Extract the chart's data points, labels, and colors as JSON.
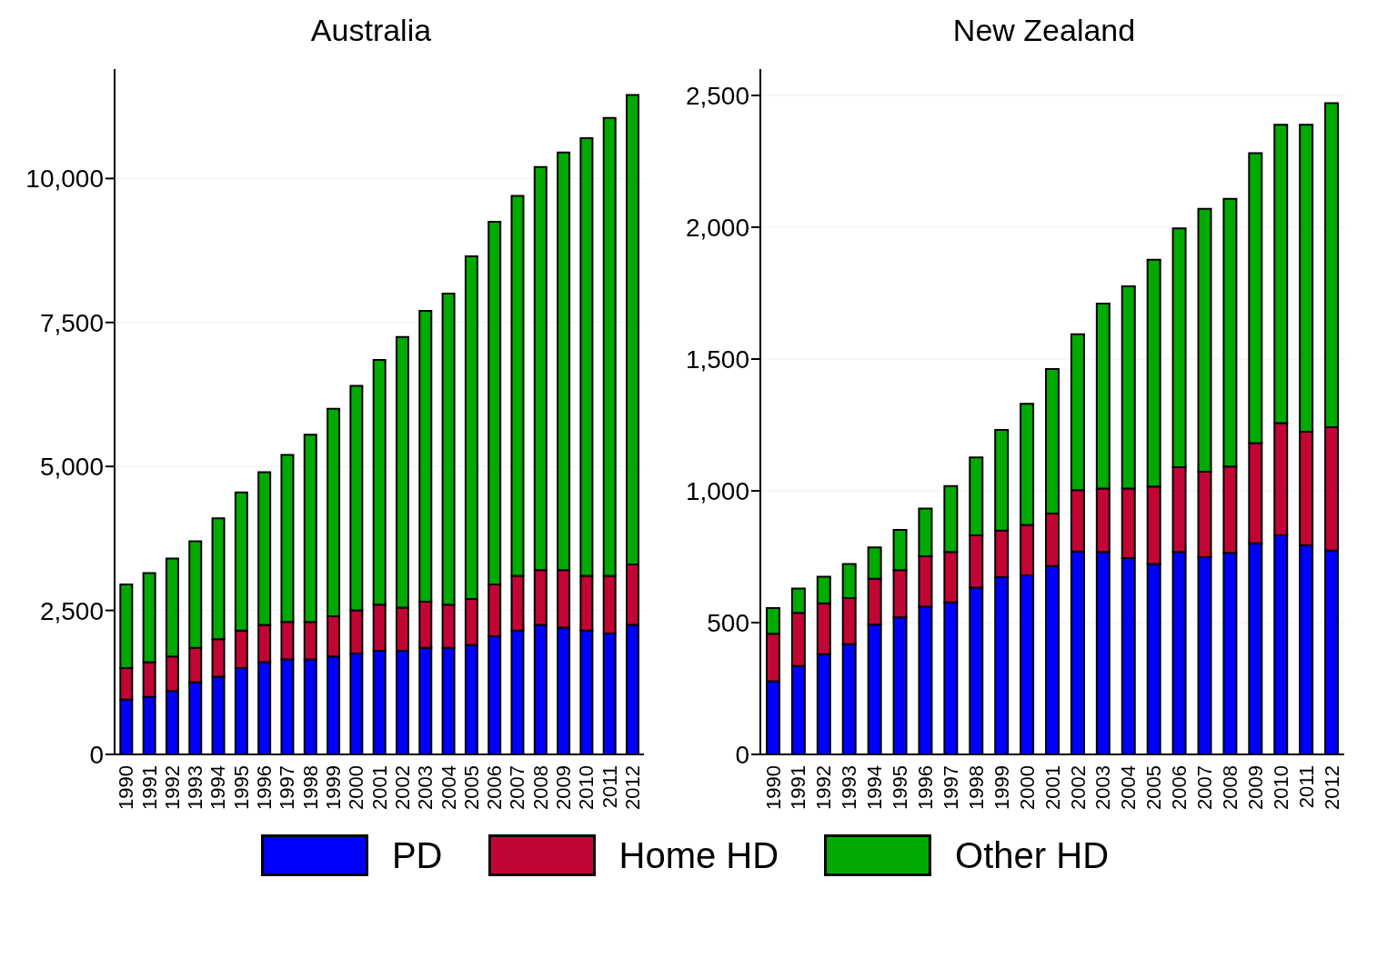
{
  "chart_data": [
    {
      "type": "bar",
      "title": "Australia",
      "stacked": true,
      "grid": "y",
      "legend": "bottom",
      "categories": [
        "1990",
        "1991",
        "1992",
        "1993",
        "1994",
        "1995",
        "1996",
        "1997",
        "1998",
        "1999",
        "2000",
        "2001",
        "2002",
        "2003",
        "2004",
        "2005",
        "2006",
        "2007",
        "2008",
        "2009",
        "2010",
        "2011",
        "2012"
      ],
      "ylim": [
        0,
        11900
      ],
      "yticks": [
        {
          "value": 0,
          "label": "0"
        },
        {
          "value": 2500,
          "label": "2,500"
        },
        {
          "value": 5000,
          "label": "5,000"
        },
        {
          "value": 7500,
          "label": "7,500"
        },
        {
          "value": 10000,
          "label": "10,000"
        }
      ],
      "series": [
        {
          "name": "PD",
          "color": "#0000ff",
          "values": [
            950,
            1000,
            1100,
            1250,
            1350,
            1500,
            1600,
            1650,
            1650,
            1700,
            1750,
            1800,
            1800,
            1850,
            1850,
            1900,
            2050,
            2150,
            2250,
            2200,
            2150,
            2100,
            2250
          ]
        },
        {
          "name": "Home HD",
          "color": "#c10534",
          "values": [
            550,
            600,
            600,
            600,
            650,
            650,
            650,
            650,
            650,
            700,
            750,
            800,
            750,
            800,
            750,
            800,
            900,
            950,
            950,
            1000,
            950,
            1000,
            1050
          ]
        },
        {
          "name": "Other HD",
          "color": "#00aa00",
          "values": [
            1450,
            1550,
            1700,
            1850,
            2100,
            2400,
            2650,
            2900,
            3250,
            3600,
            3900,
            4250,
            4700,
            5050,
            5400,
            5950,
            6300,
            6600,
            7000,
            7250,
            7600,
            7950,
            8150
          ]
        }
      ]
    },
    {
      "type": "bar",
      "title": "New Zealand",
      "stacked": true,
      "grid": "y",
      "categories": [
        "1990",
        "1991",
        "1992",
        "1993",
        "1994",
        "1995",
        "1996",
        "1997",
        "1998",
        "1999",
        "2000",
        "2001",
        "2002",
        "2003",
        "2004",
        "2005",
        "2006",
        "2007",
        "2008",
        "2009",
        "2010",
        "2011",
        "2012"
      ],
      "ylim": [
        0,
        2600
      ],
      "yticks": [
        {
          "value": 0,
          "label": "0"
        },
        {
          "value": 500,
          "label": "500"
        },
        {
          "value": 1000,
          "label": "1,000"
        },
        {
          "value": 1500,
          "label": "1,500"
        },
        {
          "value": 2000,
          "label": "2,000"
        },
        {
          "value": 2500,
          "label": "2,500"
        }
      ],
      "series": [
        {
          "color": "#0000ff",
          "values": [
            278,
            335,
            380,
            418,
            492,
            520,
            560,
            577,
            633,
            672,
            679,
            715,
            770,
            768,
            745,
            722,
            768,
            748,
            765,
            801,
            831,
            793,
            773
          ]
        },
        {
          "color": "#c10534",
          "values": [
            180,
            202,
            193,
            175,
            174,
            179,
            192,
            191,
            198,
            177,
            192,
            199,
            233,
            241,
            264,
            294,
            322,
            324,
            327,
            380,
            426,
            431,
            468
          ]
        },
        {
          "color": "#00aa00",
          "values": [
            97,
            92,
            101,
            129,
            119,
            153,
            181,
            250,
            296,
            382,
            459,
            548,
            591,
            701,
            767,
            861,
            906,
            998,
            1016,
            1100,
            1132,
            1165,
            1230
          ]
        }
      ]
    }
  ]
}
